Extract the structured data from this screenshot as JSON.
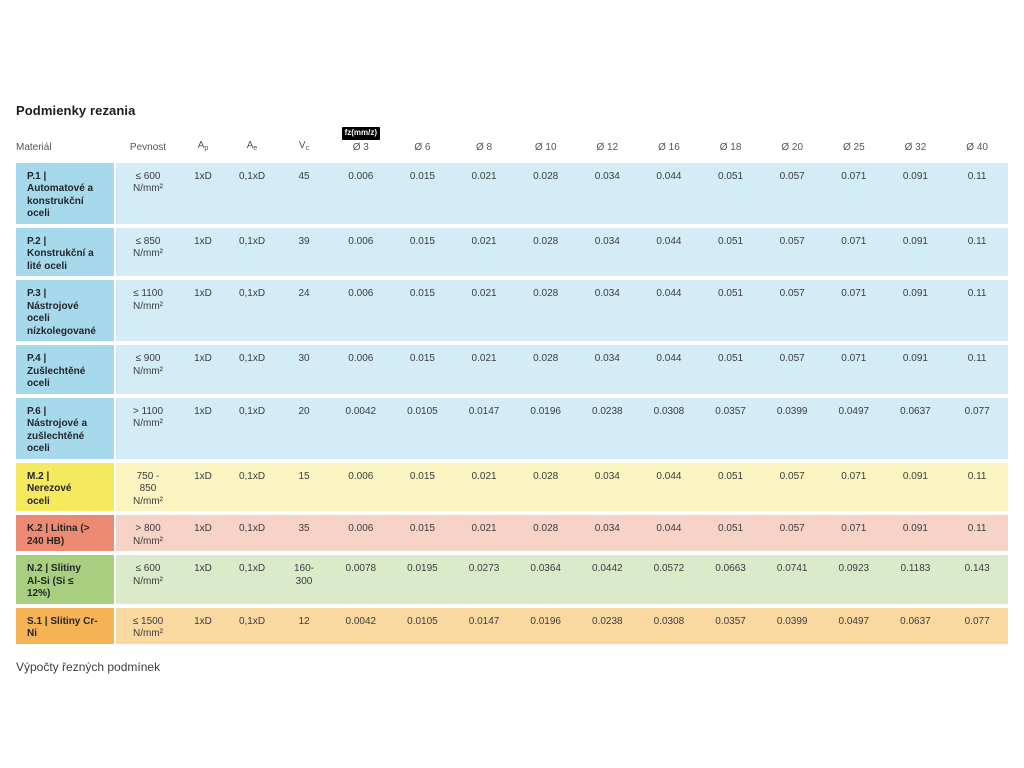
{
  "page": {
    "title": "Podmienky rezania",
    "footer": "Výpočty řezných podmínek"
  },
  "colors": {
    "blue": {
      "first": "#a6d9ec",
      "body": "#d4ecf6"
    },
    "yellow": {
      "first": "#f5e95e",
      "body": "#faf4c1"
    },
    "salmon": {
      "first": "#ed8a73",
      "body": "#f7d2c7"
    },
    "green": {
      "first": "#a8ce7f",
      "body": "#dbeac8"
    },
    "orange": {
      "first": "#f5b356",
      "body": "#fad9a1"
    },
    "badge_bg": "#000000",
    "badge_text": "#ffffff"
  },
  "table": {
    "fz_badge": "fz(mm/z)",
    "columns": [
      {
        "label": "Materiál"
      },
      {
        "label": "Pevnost"
      },
      {
        "label": "A",
        "sub": "p"
      },
      {
        "label": "A",
        "sub": "e"
      },
      {
        "label": "V",
        "sub": "c"
      },
      {
        "label": "Ø 3",
        "badge": true
      },
      {
        "label": "Ø 6"
      },
      {
        "label": "Ø 8"
      },
      {
        "label": "Ø 10"
      },
      {
        "label": "Ø 12"
      },
      {
        "label": "Ø 16"
      },
      {
        "label": "Ø 18"
      },
      {
        "label": "Ø 20"
      },
      {
        "label": "Ø 25"
      },
      {
        "label": "Ø 32"
      },
      {
        "label": "Ø 40"
      }
    ],
    "rows": [
      {
        "color": "blue",
        "material": "P.1 |\nAutomatové a\nkonstrukční\noceli",
        "pevnost": "≤ 600\nN/mm²",
        "ap": "1xD",
        "ae": "0,1xD",
        "vc": "45",
        "fz": [
          "0.006",
          "0.015",
          "0.021",
          "0.028",
          "0.034",
          "0.044",
          "0.051",
          "0.057",
          "0.071",
          "0.091",
          "0.11"
        ]
      },
      {
        "color": "blue",
        "material": "P.2 |\nKonstrukční a\nlité oceli",
        "pevnost": "≤ 850\nN/mm²",
        "ap": "1xD",
        "ae": "0,1xD",
        "vc": "39",
        "fz": [
          "0.006",
          "0.015",
          "0.021",
          "0.028",
          "0.034",
          "0.044",
          "0.051",
          "0.057",
          "0.071",
          "0.091",
          "0.11"
        ]
      },
      {
        "color": "blue",
        "material": "P.3 |\nNástrojové\noceli\nnízkolegované",
        "pevnost": "≤ 1100\nN/mm²",
        "ap": "1xD",
        "ae": "0,1xD",
        "vc": "24",
        "fz": [
          "0.006",
          "0.015",
          "0.021",
          "0.028",
          "0.034",
          "0.044",
          "0.051",
          "0.057",
          "0.071",
          "0.091",
          "0.11"
        ]
      },
      {
        "color": "blue",
        "material": "P.4 |\nZušlechtěné\noceli",
        "pevnost": "≤ 900\nN/mm²",
        "ap": "1xD",
        "ae": "0,1xD",
        "vc": "30",
        "fz": [
          "0.006",
          "0.015",
          "0.021",
          "0.028",
          "0.034",
          "0.044",
          "0.051",
          "0.057",
          "0.071",
          "0.091",
          "0.11"
        ]
      },
      {
        "color": "blue",
        "material": "P.6 |\nNástrojové a\nzušlechtěné\noceli",
        "pevnost": "> 1100\nN/mm²",
        "ap": "1xD",
        "ae": "0,1xD",
        "vc": "20",
        "fz": [
          "0.0042",
          "0.0105",
          "0.0147",
          "0.0196",
          "0.0238",
          "0.0308",
          "0.0357",
          "0.0399",
          "0.0497",
          "0.0637",
          "0.077"
        ]
      },
      {
        "color": "yellow",
        "material": "M.2 |\nNerezové\noceli",
        "pevnost": "750 -\n850\nN/mm²",
        "ap": "1xD",
        "ae": "0,1xD",
        "vc": "15",
        "fz": [
          "0.006",
          "0.015",
          "0.021",
          "0.028",
          "0.034",
          "0.044",
          "0.051",
          "0.057",
          "0.071",
          "0.091",
          "0.11"
        ]
      },
      {
        "color": "salmon",
        "material": "K.2 | Litina (>\n240 HB)",
        "pevnost": "> 800\nN/mm²",
        "ap": "1xD",
        "ae": "0,1xD",
        "vc": "35",
        "fz": [
          "0.006",
          "0.015",
          "0.021",
          "0.028",
          "0.034",
          "0.044",
          "0.051",
          "0.057",
          "0.071",
          "0.091",
          "0.11"
        ]
      },
      {
        "color": "green",
        "material": "N.2 | Slitiny\nAl-Si (Si ≤\n12%)",
        "pevnost": "≤ 600\nN/mm²",
        "ap": "1xD",
        "ae": "0,1xD",
        "vc": "160-\n300",
        "fz": [
          "0.0078",
          "0.0195",
          "0.0273",
          "0.0364",
          "0.0442",
          "0.0572",
          "0.0663",
          "0.0741",
          "0.0923",
          "0.1183",
          "0.143"
        ]
      },
      {
        "color": "orange",
        "material": "S.1 | Slitiny Cr-\nNi",
        "pevnost": "≤ 1500\nN/mm²",
        "ap": "1xD",
        "ae": "0,1xD",
        "vc": "12",
        "fz": [
          "0.0042",
          "0.0105",
          "0.0147",
          "0.0196",
          "0.0238",
          "0.0308",
          "0.0357",
          "0.0399",
          "0.0497",
          "0.0637",
          "0.077"
        ]
      }
    ]
  }
}
